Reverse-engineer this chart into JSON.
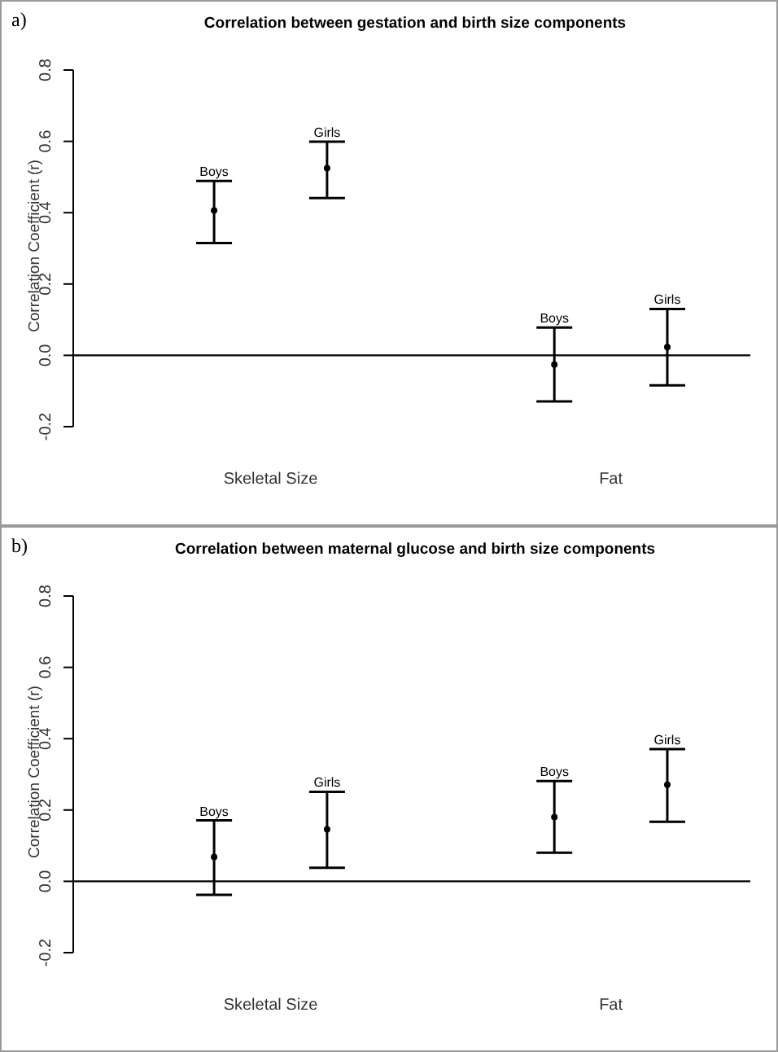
{
  "chart_data": [
    {
      "type": "scatter",
      "title": "Correlation between gestation and birth size components",
      "ylabel": "Correlation Coefficient (r)",
      "annotations": [
        "a)"
      ],
      "categories": [
        "Skeletal Size",
        "Fat"
      ],
      "ylim": [
        -0.2,
        0.8
      ],
      "yticks": [
        {
          "value": -0.2,
          "label": "-0.2"
        },
        {
          "value": 0,
          "label": "0.0"
        },
        {
          "value": 0.2,
          "label": "0.2"
        },
        {
          "value": 0.4,
          "label": "0.4"
        },
        {
          "value": 0.6,
          "label": "0.6"
        },
        {
          "value": 0.8,
          "label": "0.8"
        }
      ],
      "marker": "circle",
      "ref_lines": [
        {
          "axis": "y",
          "value": 0,
          "color": "#000000"
        }
      ],
      "series": [
        {
          "name": "Boys",
          "color": "#000000",
          "values": [
            0.406,
            -0.026
          ],
          "errors": [
            [
              0.315,
              0.489
            ],
            [
              -0.129,
              0.078
            ]
          ]
        },
        {
          "name": "Girls",
          "color": "#000000",
          "values": [
            0.525,
            0.023
          ],
          "errors": [
            [
              0.441,
              0.599
            ],
            [
              -0.084,
              0.13
            ]
          ]
        }
      ]
    },
    {
      "type": "scatter",
      "title": "Correlation between maternal glucose and birth size components",
      "ylabel": "Correlation Coefficient (r)",
      "annotations": [
        "b)"
      ],
      "categories": [
        "Skeletal Size",
        "Fat"
      ],
      "ylim": [
        -0.2,
        0.8
      ],
      "yticks": [
        {
          "value": -0.2,
          "label": "-0.2"
        },
        {
          "value": 0,
          "label": "0.0"
        },
        {
          "value": 0.2,
          "label": "0.2"
        },
        {
          "value": 0.4,
          "label": "0.4"
        },
        {
          "value": 0.6,
          "label": "0.6"
        },
        {
          "value": 0.8,
          "label": "0.8"
        }
      ],
      "marker": "circle",
      "ref_lines": [
        {
          "axis": "y",
          "value": 0,
          "color": "#000000"
        }
      ],
      "series": [
        {
          "name": "Boys",
          "color": "#000000",
          "values": [
            0.068,
            0.18
          ],
          "errors": [
            [
              -0.038,
              0.171
            ],
            [
              0.08,
              0.281
            ]
          ]
        },
        {
          "name": "Girls",
          "color": "#000000",
          "values": [
            0.146,
            0.271
          ],
          "errors": [
            [
              0.038,
              0.251
            ],
            [
              0.167,
              0.371
            ]
          ]
        }
      ]
    }
  ]
}
